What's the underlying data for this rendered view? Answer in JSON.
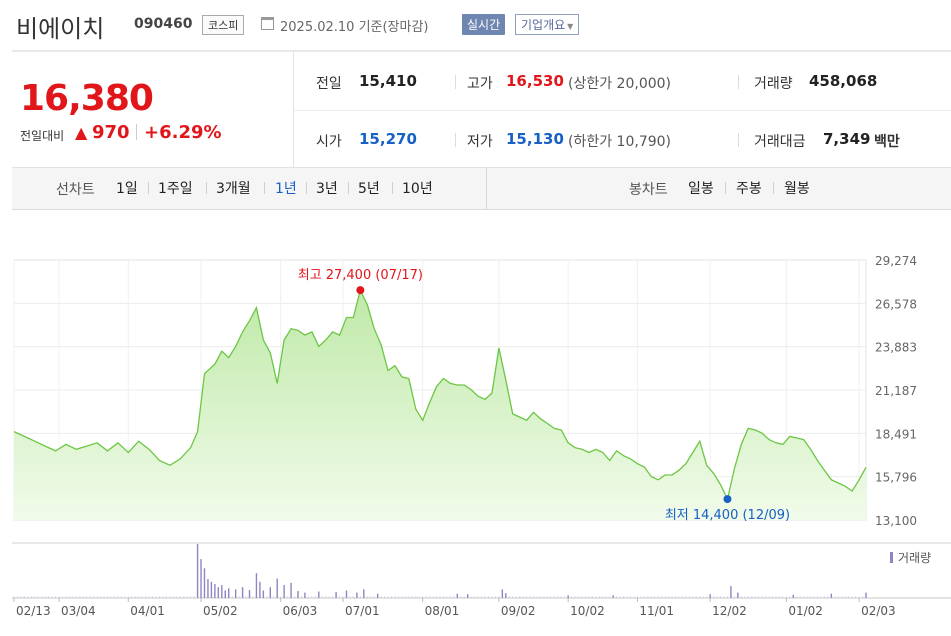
{
  "header": {
    "name": "비에이치",
    "code": "090460",
    "market": "코스피",
    "date": "2025.02.10 기준(장마감)",
    "realtime_label": "실시간",
    "corp_label": "기업개요"
  },
  "quote": {
    "price": "16,380",
    "diff_label": "전일대비",
    "diff_arrow": "▲",
    "diff": "970",
    "rate": "+6.29%",
    "prev_label": "전일",
    "prev": "15,410",
    "open_label": "시가",
    "open": "15,270",
    "high_label": "고가",
    "high": "16,530",
    "upper_limit": "(상한가 20,000)",
    "low_label": "저가",
    "low": "15,130",
    "lower_limit": "(하한가 10,790)",
    "volume_label": "거래량",
    "volume": "458,068",
    "amount_label": "거래대금",
    "amount": "7,349",
    "amount_unit": "백만"
  },
  "periodbar": {
    "line_label": "선차트",
    "periods": [
      "1일",
      "1주일",
      "3개월",
      "1년",
      "3년",
      "5년",
      "10년"
    ],
    "active_period": "1년",
    "candle_label": "봉차트",
    "candles": [
      "일봉",
      "주봉",
      "월봉"
    ]
  },
  "colors": {
    "up": "#e0161b",
    "down": "#1760c6",
    "line": "#6cc644",
    "area_top": "#bfe9a8",
    "area_bottom": "#f1fbea",
    "volume": "#8c86c2"
  },
  "chart_data": {
    "type": "area",
    "ylim": [
      13100,
      29274
    ],
    "y_ticks": [
      "29,274",
      "26,578",
      "23,883",
      "21,187",
      "18,491",
      "15,796",
      "13,100"
    ],
    "x_ticks": [
      "02/13",
      "03/04",
      "04/01",
      "05/02",
      "06/03",
      "07/01",
      "08/01",
      "09/02",
      "10/02",
      "11/01",
      "12/02",
      "01/02",
      "02/03"
    ],
    "tick_days": [
      0,
      13,
      33,
      54,
      77,
      95,
      118,
      140,
      160,
      180,
      201,
      223,
      244
    ],
    "max_label": "최고 27,400 (07/17)",
    "min_label": "최저 14,400 (12/09)",
    "max_point": {
      "x": "07/17",
      "y": 27400
    },
    "min_point": {
      "x": "12/09",
      "y": 14400
    },
    "volume_label": "거래량",
    "series": [
      {
        "x_days": [
          0,
          3,
          6,
          9,
          12,
          15,
          18,
          21,
          24,
          27,
          30,
          33,
          36,
          39,
          42,
          45,
          48,
          51,
          53,
          55,
          58,
          60,
          62,
          64,
          66,
          68,
          70,
          72,
          74,
          76,
          78,
          80,
          82,
          84,
          86,
          88,
          90,
          92,
          94,
          96,
          98,
          100,
          102,
          104,
          106,
          108,
          110,
          112,
          114,
          116,
          118,
          120,
          122,
          124,
          126,
          128,
          130,
          132,
          134,
          136,
          138,
          140,
          142,
          144,
          146,
          148,
          150,
          152,
          154,
          156,
          158,
          160,
          162,
          164,
          166,
          168,
          170,
          172,
          174,
          176,
          178,
          180,
          182,
          184,
          186,
          188,
          190,
          192,
          194,
          196,
          198,
          200,
          202,
          204,
          206,
          208,
          210,
          212,
          214,
          216,
          218,
          220,
          222,
          224,
          226,
          228,
          230,
          232,
          234,
          236,
          238,
          240,
          242,
          244,
          246
        ],
        "y": [
          18600,
          18300,
          18000,
          17700,
          17400,
          17800,
          17500,
          17700,
          17900,
          17400,
          17900,
          17300,
          18000,
          17500,
          16800,
          16500,
          16900,
          17600,
          18600,
          22200,
          22800,
          23600,
          23200,
          23900,
          24800,
          25500,
          26300,
          24300,
          23500,
          21600,
          24300,
          25000,
          24900,
          24600,
          24800,
          23900,
          24300,
          24800,
          24600,
          25700,
          25700,
          27400,
          26500,
          25000,
          24000,
          22400,
          22700,
          22000,
          21900,
          20000,
          19300,
          20400,
          21400,
          21900,
          21600,
          21500,
          21500,
          21200,
          20800,
          20600,
          21000,
          23800,
          21800,
          19700,
          19500,
          19300,
          19800,
          19400,
          19100,
          18800,
          18700,
          17900,
          17600,
          17500,
          17300,
          17500,
          17300,
          16800,
          17400,
          17100,
          16900,
          16600,
          16400,
          15800,
          15600,
          15900,
          15900,
          16200,
          16600,
          17300,
          18000,
          16500,
          16000,
          15300,
          14400,
          16300,
          17800,
          18800,
          18700,
          18500,
          18100,
          17900,
          17800,
          18300,
          18200,
          18100,
          17500,
          16800,
          16200,
          15600,
          15400,
          15200,
          14900,
          15600,
          16380
        ]
      }
    ],
    "volume_bars": [
      {
        "x": 53,
        "v": 1.0
      },
      {
        "x": 54,
        "v": 0.72
      },
      {
        "x": 55,
        "v": 0.55
      },
      {
        "x": 56,
        "v": 0.35
      },
      {
        "x": 57,
        "v": 0.3
      },
      {
        "x": 58,
        "v": 0.26
      },
      {
        "x": 59,
        "v": 0.2
      },
      {
        "x": 60,
        "v": 0.24
      },
      {
        "x": 61,
        "v": 0.14
      },
      {
        "x": 62,
        "v": 0.18
      },
      {
        "x": 64,
        "v": 0.16
      },
      {
        "x": 66,
        "v": 0.2
      },
      {
        "x": 68,
        "v": 0.15
      },
      {
        "x": 70,
        "v": 0.46
      },
      {
        "x": 71,
        "v": 0.3
      },
      {
        "x": 72,
        "v": 0.14
      },
      {
        "x": 74,
        "v": 0.2
      },
      {
        "x": 76,
        "v": 0.36
      },
      {
        "x": 78,
        "v": 0.24
      },
      {
        "x": 80,
        "v": 0.28
      },
      {
        "x": 82,
        "v": 0.13
      },
      {
        "x": 84,
        "v": 0.1
      },
      {
        "x": 88,
        "v": 0.12
      },
      {
        "x": 93,
        "v": 0.11
      },
      {
        "x": 96,
        "v": 0.14
      },
      {
        "x": 99,
        "v": 0.1
      },
      {
        "x": 101,
        "v": 0.16
      },
      {
        "x": 105,
        "v": 0.08
      },
      {
        "x": 128,
        "v": 0.08
      },
      {
        "x": 131,
        "v": 0.07
      },
      {
        "x": 141,
        "v": 0.16
      },
      {
        "x": 142,
        "v": 0.09
      },
      {
        "x": 160,
        "v": 0.05
      },
      {
        "x": 173,
        "v": 0.05
      },
      {
        "x": 201,
        "v": 0.07
      },
      {
        "x": 207,
        "v": 0.22
      },
      {
        "x": 209,
        "v": 0.1
      },
      {
        "x": 225,
        "v": 0.06
      },
      {
        "x": 236,
        "v": 0.08
      },
      {
        "x": 246,
        "v": 0.1
      }
    ]
  }
}
